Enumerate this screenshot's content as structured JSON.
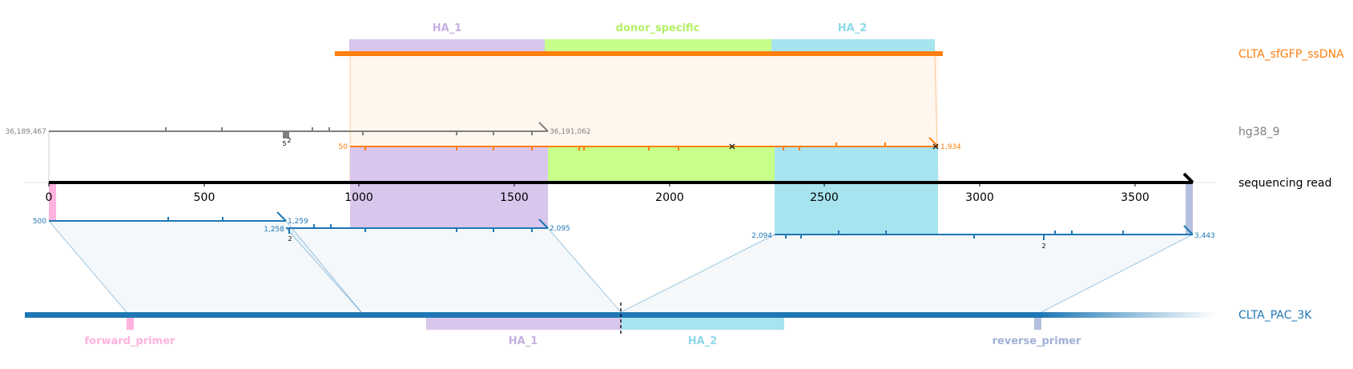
{
  "colors": {
    "orange": "#ff7f0e",
    "grey": "#7f7f7f",
    "blue": "#1f77b4",
    "read": "#000000",
    "ha1": "#d9c6ec",
    "ha1_text": "#c5b0e0",
    "donor": "#c7ff8a",
    "donor_text": "#b3f066",
    "ha2": "#a7e4ef",
    "ha2_text": "#8ed8ea",
    "forward_primer": "#ffb3de",
    "reverse_primer": "#b4c0de"
  },
  "tracks": {
    "donor": {
      "name": "CLTA_sfGFP_ssDNA"
    },
    "genome": {
      "name": "hg38_9"
    },
    "read": {
      "name": "sequencing read"
    },
    "amplicon": {
      "name": "CLTA_PAC_3K"
    }
  },
  "donor_features": [
    {
      "name": "HA_1"
    },
    {
      "name": "donor_specific"
    },
    {
      "name": "HA_2"
    }
  ],
  "amplicon_features": [
    {
      "name": "forward_primer"
    },
    {
      "name": "HA_1"
    },
    {
      "name": "HA_2"
    },
    {
      "name": "reverse_primer"
    }
  ],
  "read_axis": {
    "ticks": [
      "0",
      "500",
      "1000",
      "1500",
      "2000",
      "2500",
      "3000",
      "3500"
    ]
  },
  "alignment_labels": {
    "genome_start": "36,189,467",
    "genome_end": "36,191,062",
    "genome_marker": "5",
    "genome_marker2": "2",
    "donor_start": "50",
    "donor_end": "1,934",
    "amp1_start": "500",
    "amp1_end": "1,259",
    "amp2_start": "1,258",
    "amp2_end": "2,095",
    "amp2_marker": "2",
    "amp3_start": "2,094",
    "amp3_end": "3,443",
    "amp3_marker": "2"
  }
}
